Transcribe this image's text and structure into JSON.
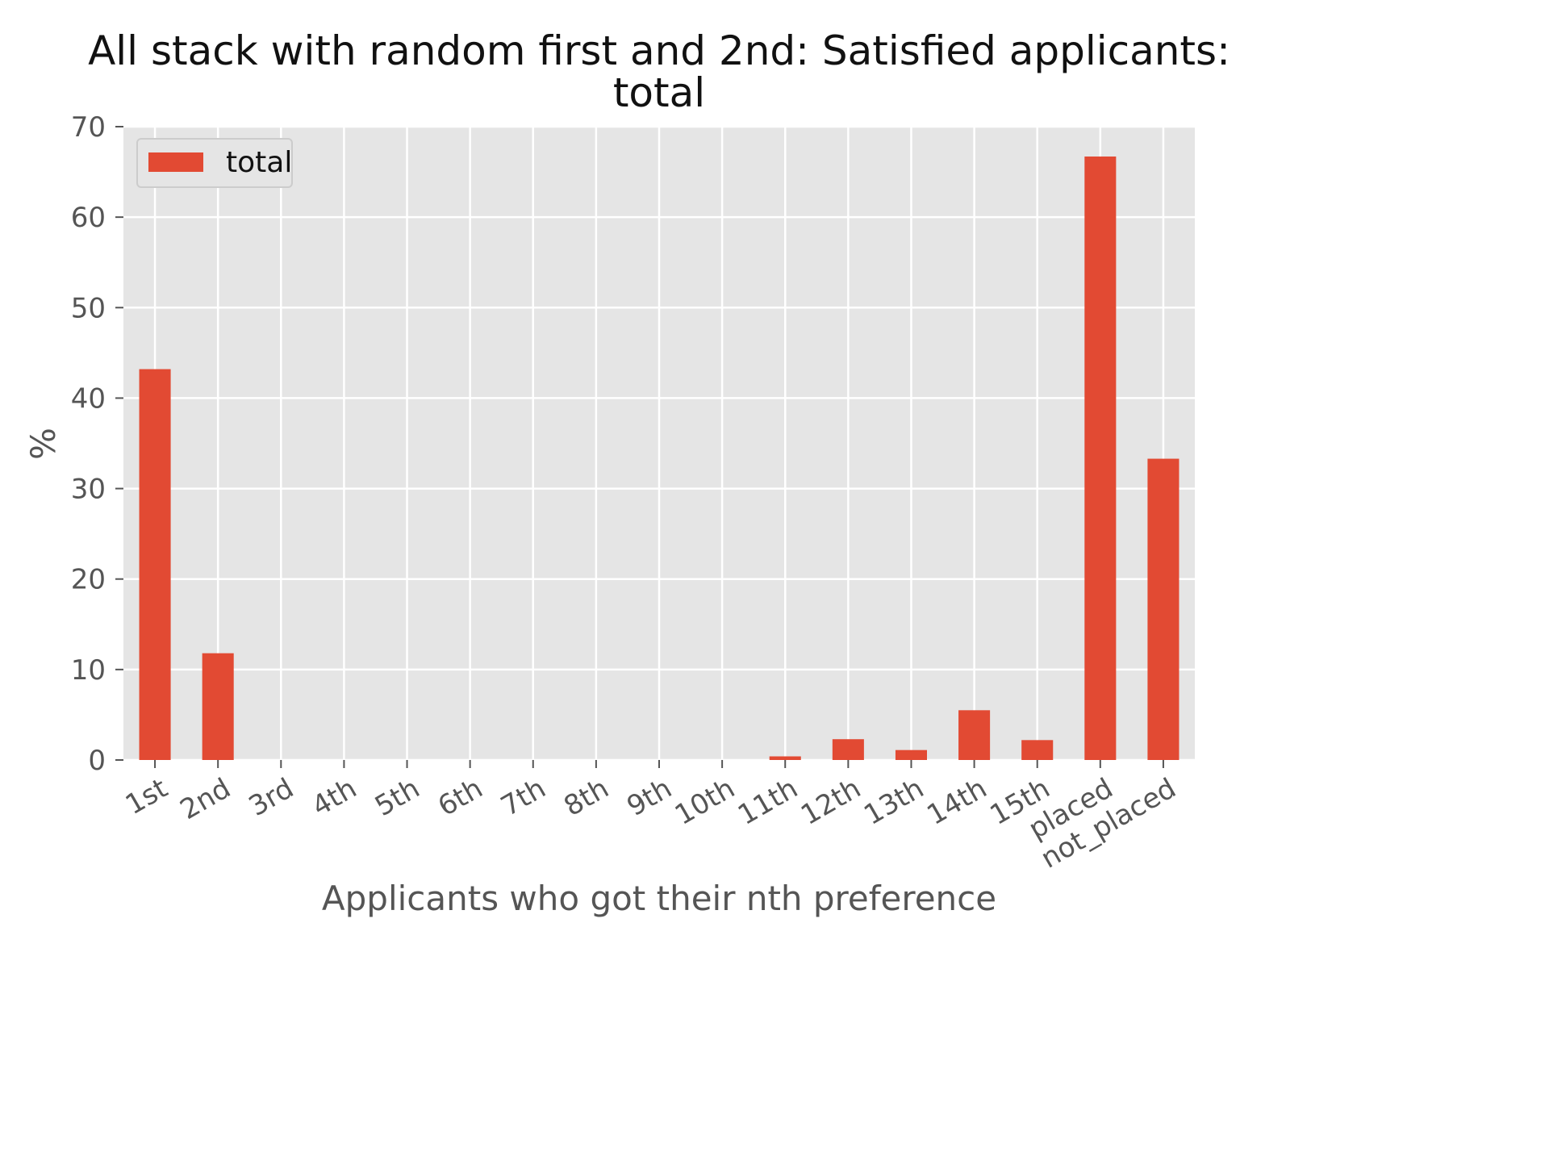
{
  "chart_data": {
    "type": "bar",
    "title": "All stack with random first and 2nd: Satisfied applicants: total",
    "title_lines": [
      "All stack with random first and 2nd: Satisfied applicants:",
      "total"
    ],
    "xlabel": "Applicants who got their nth preference",
    "ylabel": "%",
    "ylim": [
      0,
      70
    ],
    "yticks": [
      0,
      10,
      20,
      30,
      40,
      50,
      60,
      70
    ],
    "categories": [
      "1st",
      "2nd",
      "3rd",
      "4th",
      "5th",
      "6th",
      "7th",
      "8th",
      "9th",
      "10th",
      "11th",
      "12th",
      "13th",
      "14th",
      "15th",
      "placed",
      "not_placed"
    ],
    "series": [
      {
        "name": "total",
        "color": "#E24A33",
        "values": [
          43.2,
          11.8,
          0,
          0,
          0,
          0,
          0,
          0,
          0,
          0,
          0.4,
          2.3,
          1.1,
          5.5,
          2.2,
          66.7,
          33.3
        ]
      }
    ],
    "grid": true,
    "legend_position": "upper-left",
    "colors": {
      "background": "#E5E5E5",
      "grid": "#FFFFFF",
      "bar": "#E24A33"
    }
  }
}
